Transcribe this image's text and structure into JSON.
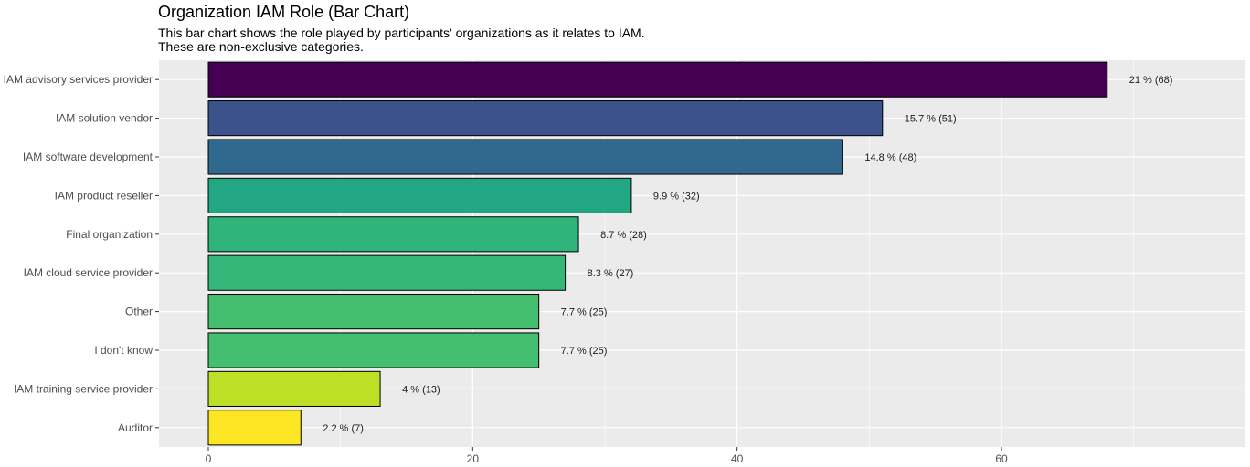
{
  "chart_data": {
    "type": "bar",
    "orientation": "horizontal",
    "title": "Organization IAM Role (Bar Chart)",
    "subtitle_lines": [
      "This bar chart shows the role played by participants' organizations as it relates to IAM.",
      "These are non-exclusive categories."
    ],
    "xlabel": "",
    "ylabel": "",
    "xlim": [
      0,
      76
    ],
    "x_ticks": [
      0,
      20,
      40,
      60
    ],
    "grid": true,
    "legend": "none",
    "categories": [
      "IAM advisory services provider",
      "IAM solution vendor",
      "IAM software development",
      "IAM product reseller",
      "Final organization",
      "IAM cloud service provider",
      "Other",
      "I don't know",
      "IAM training service provider",
      "Auditor"
    ],
    "values": [
      68,
      51,
      48,
      32,
      28,
      27,
      25,
      25,
      13,
      7
    ],
    "labels": [
      "21 % (68)",
      "15.7 % (51)",
      "14.8 % (48)",
      "9.9 % (32)",
      "8.7 % (28)",
      "8.3 % (27)",
      "7.7 % (25)",
      "7.7 % (25)",
      "4 % (13)",
      "2.2 % (7)"
    ],
    "colors": [
      "#440154",
      "#3b528b",
      "#31688e",
      "#21a784",
      "#2fb47c",
      "#35b779",
      "#44bf70",
      "#44bf70",
      "#bddf26",
      "#fde725"
    ],
    "panel_background": "#ebebeb",
    "grid_color": "#ffffff",
    "bar_outline": "#000000"
  }
}
